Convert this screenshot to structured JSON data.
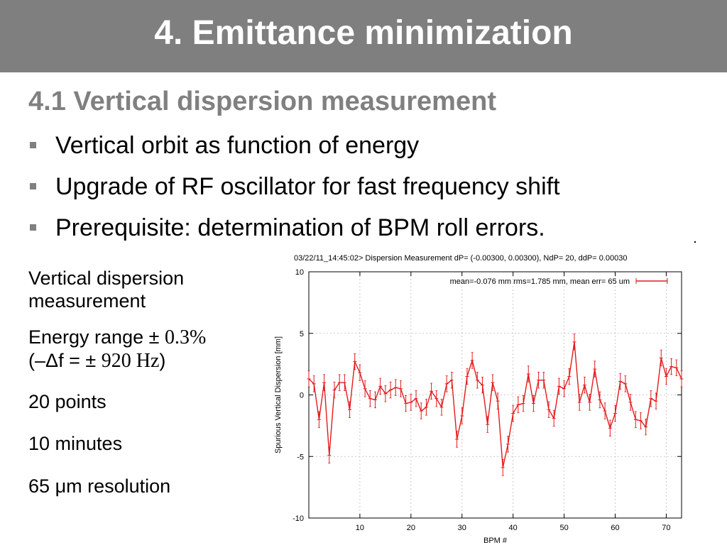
{
  "slide": {
    "title": "4. Emittance minimization",
    "subtitle": "4.1 Vertical dispersion measurement",
    "bullets": [
      "Vertical orbit as function of energy",
      "Upgrade of RF oscillator for fast frequency shift",
      "Prerequisite: determination of BPM roll errors."
    ],
    "left_info": {
      "line1": "Vertical dispersion",
      "line2": "measurement",
      "energy_label": "Energy range",
      "pm1": "±",
      "energy_value": "0.3%",
      "open_paren": "(",
      "minus_delta": "–Δ",
      "f_label": "f",
      "equals": "=",
      "pm2": "±",
      "freq_value": "920 Hz",
      "close_paren": ")",
      "points": "20 points",
      "minutes": "10 minutes",
      "res_num": "65",
      "res_mu": "μ",
      "res_text": "m resolution"
    }
  },
  "chart_data": {
    "type": "line",
    "title": "03/22/11_14:45:02> Dispersion Measurement dP= (-0.00300, 0.00300), NdP= 20, ddP=  0.00030",
    "xlabel": "BPM #",
    "ylabel": "Spurious Vertical Dispersion [mm]",
    "xlim": [
      0,
      73
    ],
    "ylim": [
      -10,
      10
    ],
    "xticks": [
      10,
      20,
      30,
      40,
      50,
      60,
      70
    ],
    "yticks": [
      -10,
      -5,
      0,
      5,
      10
    ],
    "grid": true,
    "legend_position": "top-right",
    "series_color": "#e41a1c",
    "series": [
      {
        "name": "mean=-0.076 mm rms=1.785 mm, mean err= 65 um",
        "x": [
          0,
          1,
          2,
          3,
          4,
          5,
          6,
          7,
          8,
          9,
          10,
          11,
          12,
          13,
          14,
          15,
          16,
          17,
          18,
          19,
          20,
          21,
          22,
          23,
          24,
          25,
          26,
          27,
          28,
          29,
          30,
          31,
          32,
          33,
          34,
          35,
          36,
          37,
          38,
          39,
          40,
          41,
          42,
          43,
          44,
          45,
          46,
          47,
          48,
          49,
          50,
          51,
          52,
          53,
          54,
          55,
          56,
          57,
          58,
          59,
          60,
          61,
          62,
          63,
          64,
          65,
          66,
          67,
          68,
          69,
          70,
          71,
          72,
          73
        ],
        "y": [
          1.3,
          0.9,
          -2.0,
          1.0,
          -4.9,
          0.4,
          1.0,
          1.0,
          -1.2,
          2.7,
          1.8,
          0.5,
          -0.3,
          -0.4,
          0.7,
          0.1,
          0.4,
          0.6,
          0.5,
          -0.7,
          -0.6,
          -0.3,
          -1.3,
          -1.0,
          0.3,
          -0.3,
          -1.0,
          0.9,
          1.2,
          -3.6,
          -1.7,
          1.5,
          2.8,
          1.2,
          0.8,
          -2.4,
          1.0,
          -0.5,
          -5.9,
          -4.0,
          -1.5,
          -0.8,
          -0.7,
          1.7,
          -0.7,
          1.2,
          1.2,
          -1.2,
          -1.9,
          0.7,
          0.5,
          1.5,
          4.3,
          -0.6,
          0.8,
          -0.6,
          2.1,
          -0.4,
          -1.3,
          -2.7,
          -1.5,
          1.1,
          0.9,
          -0.6,
          -2.0,
          -2.1,
          -2.6,
          -0.3,
          -0.5,
          3.0,
          1.5,
          2.3,
          2.2,
          1.3
        ],
        "err": 0.065
      }
    ]
  }
}
